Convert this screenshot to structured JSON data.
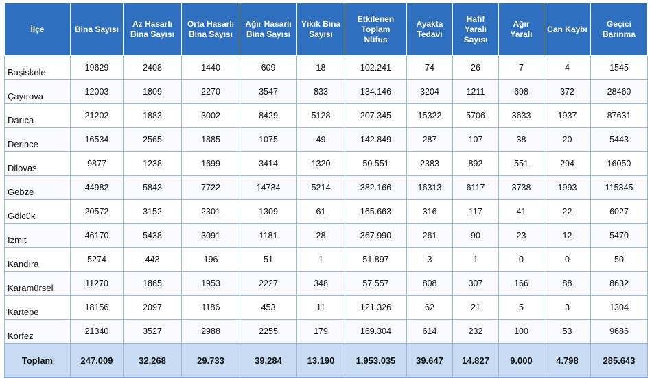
{
  "headers": [
    "İlçe",
    "Bina Sayısı",
    "Az Hasarlı\nBina Sayısı",
    "Orta Hasarlı\nBina Sayısı",
    "Ağır Hasarlı\nBina Sayısı",
    "Yıkık Bina\nSayısı",
    "Etkilenen\nToplam\nNüfus",
    "Ayakta\nTedavi",
    "Hafif\nYaralı\nSayısı",
    "Ağır\nYaralı",
    "Can Kaybı",
    "Geçici\nBarınma"
  ],
  "rows": [
    [
      "Başiskele",
      "19629",
      "2408",
      "1440",
      "609",
      "18",
      "102.241",
      "74",
      "26",
      "7",
      "4",
      "1545"
    ],
    [
      "Çayırova",
      "12003",
      "1809",
      "2270",
      "3547",
      "833",
      "134.146",
      "3204",
      "1211",
      "698",
      "372",
      "28460"
    ],
    [
      "Darıca",
      "21202",
      "1883",
      "3002",
      "8429",
      "5128",
      "207.345",
      "15322",
      "5706",
      "3633",
      "1937",
      "87631"
    ],
    [
      "Derince",
      "16534",
      "2565",
      "1885",
      "1075",
      "49",
      "142.849",
      "287",
      "107",
      "38",
      "20",
      "5443"
    ],
    [
      "Dilovası",
      "9877",
      "1238",
      "1699",
      "3414",
      "1320",
      "50.551",
      "2383",
      "892",
      "551",
      "294",
      "16050"
    ],
    [
      "Gebze",
      "44982",
      "5843",
      "7722",
      "14734",
      "5214",
      "382.166",
      "16313",
      "6117",
      "3738",
      "1993",
      "115345"
    ],
    [
      "Gölcük",
      "20572",
      "3152",
      "2301",
      "1309",
      "61",
      "165.663",
      "316",
      "117",
      "41",
      "22",
      "6027"
    ],
    [
      "İzmit",
      "46170",
      "5438",
      "3091",
      "1181",
      "28",
      "367.990",
      "261",
      "90",
      "23",
      "12",
      "5470"
    ],
    [
      "Kandıra",
      "5274",
      "443",
      "196",
      "51",
      "1",
      "51.897",
      "3",
      "1",
      "0",
      "0",
      "50"
    ],
    [
      "Karamürsel",
      "11270",
      "1865",
      "1953",
      "2227",
      "348",
      "57.557",
      "808",
      "307",
      "166",
      "88",
      "8632"
    ],
    [
      "Kartepe",
      "18156",
      "2097",
      "1186",
      "453",
      "11",
      "121.326",
      "62",
      "21",
      "5",
      "3",
      "1304"
    ],
    [
      "Körfez",
      "21340",
      "3527",
      "2988",
      "2255",
      "179",
      "169.304",
      "614",
      "232",
      "100",
      "53",
      "9686"
    ]
  ],
  "total_row": [
    "Toplam",
    "247.009",
    "32.268",
    "29.733",
    "39.284",
    "13.190",
    "1.953.035",
    "39.647",
    "14.827",
    "9.000",
    "4.798",
    "285.643"
  ],
  "colors": {
    "header_bg": "#2f6fc0",
    "header_text": "#ffffff",
    "total_bg": "#c7dcf3",
    "border": "#9db8d9"
  }
}
